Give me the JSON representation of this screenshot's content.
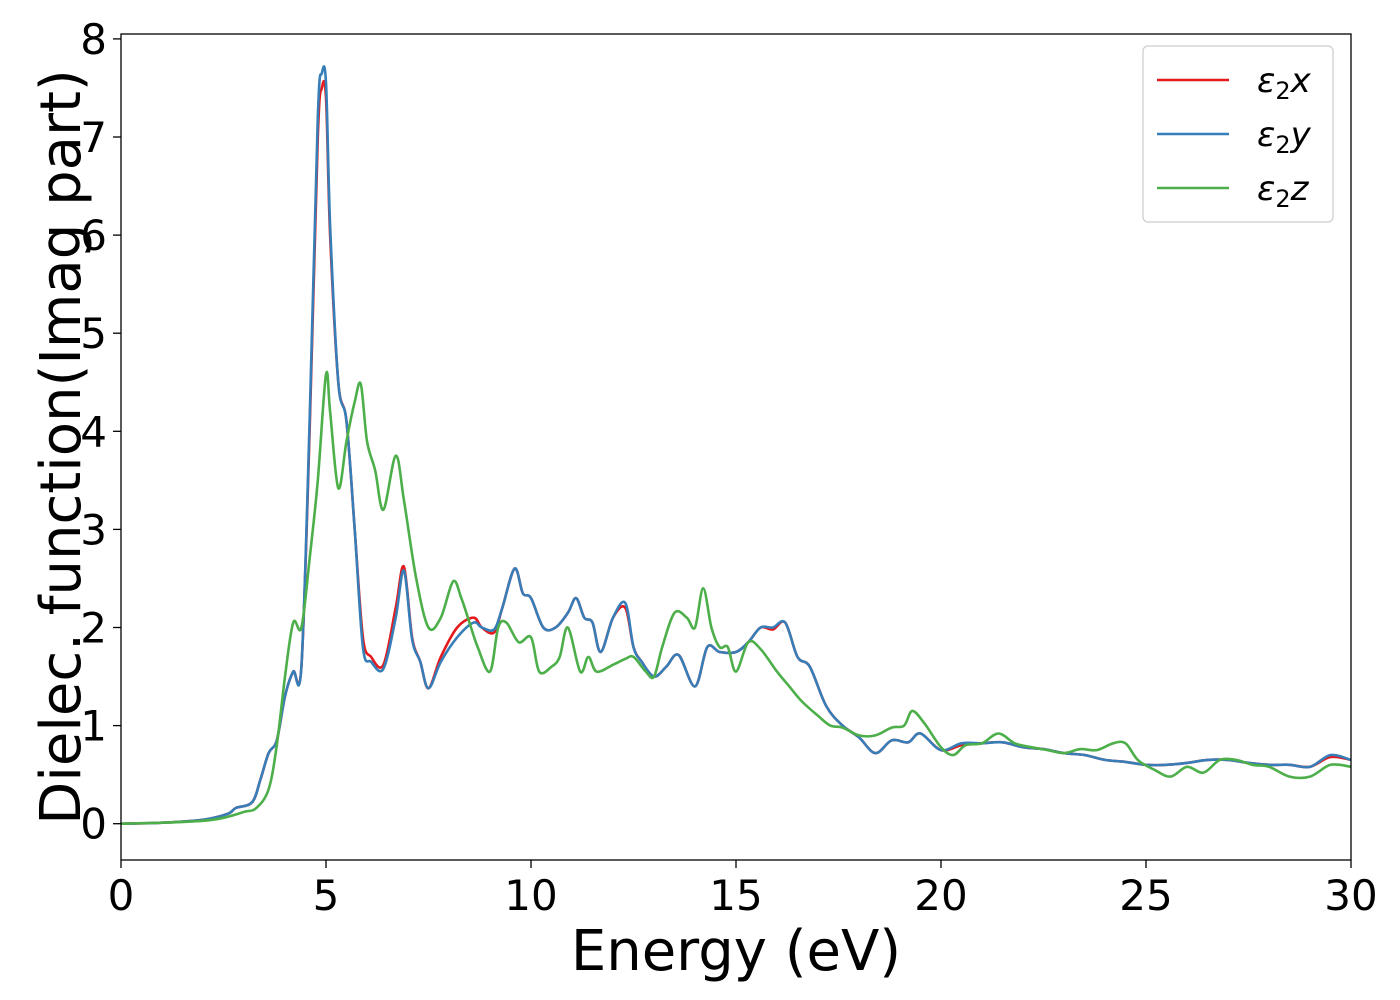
{
  "chart_data": {
    "type": "line",
    "title": "",
    "xlabel": "Energy (eV)",
    "ylabel": "Dielec. function(Imag part)",
    "xlim": [
      0,
      30
    ],
    "ylim": [
      -0.37,
      8.05
    ],
    "xticks": [
      0,
      5,
      10,
      15,
      20,
      25,
      30
    ],
    "yticks": [
      0,
      1,
      2,
      3,
      4,
      5,
      6,
      7,
      8
    ],
    "grid": false,
    "legend_position": "top-right",
    "series": [
      {
        "name": "ε₂x",
        "legend": {
          "base": "ε",
          "sub": "2",
          "axis": "x"
        },
        "color": "#e41a1c",
        "points": [
          [
            0,
            0.0
          ],
          [
            1,
            0.01
          ],
          [
            2,
            0.04
          ],
          [
            2.6,
            0.1
          ],
          [
            2.8,
            0.16
          ],
          [
            3.2,
            0.22
          ],
          [
            3.4,
            0.45
          ],
          [
            3.6,
            0.72
          ],
          [
            3.8,
            0.85
          ],
          [
            4.0,
            1.3
          ],
          [
            4.2,
            1.55
          ],
          [
            4.4,
            1.6
          ],
          [
            4.6,
            4.0
          ],
          [
            4.8,
            7.0
          ],
          [
            4.9,
            7.5
          ],
          [
            5.0,
            7.4
          ],
          [
            5.1,
            6.0
          ],
          [
            5.3,
            4.5
          ],
          [
            5.5,
            4.1
          ],
          [
            5.7,
            3.0
          ],
          [
            5.9,
            1.9
          ],
          [
            6.1,
            1.7
          ],
          [
            6.4,
            1.62
          ],
          [
            6.7,
            2.2
          ],
          [
            6.9,
            2.62
          ],
          [
            7.1,
            1.9
          ],
          [
            7.3,
            1.65
          ],
          [
            7.5,
            1.38
          ],
          [
            7.8,
            1.7
          ],
          [
            8.2,
            2.0
          ],
          [
            8.6,
            2.1
          ],
          [
            8.8,
            2.0
          ],
          [
            9.1,
            1.95
          ],
          [
            9.3,
            2.2
          ],
          [
            9.6,
            2.6
          ],
          [
            9.8,
            2.35
          ],
          [
            10.0,
            2.3
          ],
          [
            10.3,
            2.0
          ],
          [
            10.6,
            2.0
          ],
          [
            10.9,
            2.15
          ],
          [
            11.1,
            2.3
          ],
          [
            11.3,
            2.1
          ],
          [
            11.5,
            2.05
          ],
          [
            11.7,
            1.75
          ],
          [
            12.0,
            2.1
          ],
          [
            12.3,
            2.2
          ],
          [
            12.5,
            1.8
          ],
          [
            12.7,
            1.65
          ],
          [
            13.0,
            1.5
          ],
          [
            13.3,
            1.6
          ],
          [
            13.6,
            1.72
          ],
          [
            14.0,
            1.4
          ],
          [
            14.3,
            1.8
          ],
          [
            14.6,
            1.75
          ],
          [
            15.0,
            1.75
          ],
          [
            15.3,
            1.85
          ],
          [
            15.6,
            2.0
          ],
          [
            15.9,
            1.98
          ],
          [
            16.2,
            2.05
          ],
          [
            16.5,
            1.7
          ],
          [
            16.8,
            1.6
          ],
          [
            17.2,
            1.2
          ],
          [
            17.6,
            1.0
          ],
          [
            18.0,
            0.88
          ],
          [
            18.4,
            0.72
          ],
          [
            18.8,
            0.85
          ],
          [
            19.2,
            0.83
          ],
          [
            19.5,
            0.92
          ],
          [
            20.0,
            0.75
          ],
          [
            20.5,
            0.8
          ],
          [
            21.0,
            0.82
          ],
          [
            21.5,
            0.83
          ],
          [
            22.0,
            0.78
          ],
          [
            22.5,
            0.76
          ],
          [
            23.0,
            0.72
          ],
          [
            23.5,
            0.7
          ],
          [
            24.0,
            0.65
          ],
          [
            24.5,
            0.63
          ],
          [
            25.0,
            0.6
          ],
          [
            25.5,
            0.6
          ],
          [
            26.0,
            0.62
          ],
          [
            26.5,
            0.65
          ],
          [
            27.0,
            0.65
          ],
          [
            27.5,
            0.62
          ],
          [
            28.0,
            0.6
          ],
          [
            28.5,
            0.6
          ],
          [
            29.0,
            0.58
          ],
          [
            29.5,
            0.68
          ],
          [
            30.0,
            0.65
          ]
        ]
      },
      {
        "name": "ε₂y",
        "legend": {
          "base": "ε",
          "sub": "2",
          "axis": "y"
        },
        "color": "#377eb8",
        "points": [
          [
            0,
            0.0
          ],
          [
            1,
            0.01
          ],
          [
            2,
            0.04
          ],
          [
            2.6,
            0.1
          ],
          [
            2.8,
            0.16
          ],
          [
            3.2,
            0.22
          ],
          [
            3.4,
            0.45
          ],
          [
            3.6,
            0.72
          ],
          [
            3.8,
            0.85
          ],
          [
            4.0,
            1.3
          ],
          [
            4.2,
            1.55
          ],
          [
            4.4,
            1.6
          ],
          [
            4.6,
            4.1
          ],
          [
            4.8,
            7.2
          ],
          [
            4.9,
            7.65
          ],
          [
            5.0,
            7.55
          ],
          [
            5.1,
            6.1
          ],
          [
            5.3,
            4.5
          ],
          [
            5.5,
            4.1
          ],
          [
            5.7,
            3.0
          ],
          [
            5.9,
            1.8
          ],
          [
            6.1,
            1.65
          ],
          [
            6.4,
            1.58
          ],
          [
            6.7,
            2.1
          ],
          [
            6.9,
            2.58
          ],
          [
            7.1,
            1.88
          ],
          [
            7.3,
            1.65
          ],
          [
            7.5,
            1.38
          ],
          [
            7.8,
            1.65
          ],
          [
            8.2,
            1.9
          ],
          [
            8.6,
            2.05
          ],
          [
            8.8,
            2.0
          ],
          [
            9.1,
            1.98
          ],
          [
            9.3,
            2.2
          ],
          [
            9.6,
            2.6
          ],
          [
            9.8,
            2.35
          ],
          [
            10.0,
            2.3
          ],
          [
            10.3,
            2.0
          ],
          [
            10.6,
            2.0
          ],
          [
            10.9,
            2.15
          ],
          [
            11.1,
            2.3
          ],
          [
            11.3,
            2.1
          ],
          [
            11.5,
            2.05
          ],
          [
            11.7,
            1.75
          ],
          [
            12.0,
            2.1
          ],
          [
            12.3,
            2.25
          ],
          [
            12.5,
            1.8
          ],
          [
            12.7,
            1.65
          ],
          [
            13.0,
            1.5
          ],
          [
            13.3,
            1.6
          ],
          [
            13.6,
            1.72
          ],
          [
            14.0,
            1.4
          ],
          [
            14.3,
            1.8
          ],
          [
            14.6,
            1.75
          ],
          [
            15.0,
            1.75
          ],
          [
            15.3,
            1.85
          ],
          [
            15.6,
            2.0
          ],
          [
            15.9,
            2.0
          ],
          [
            16.2,
            2.05
          ],
          [
            16.5,
            1.7
          ],
          [
            16.8,
            1.6
          ],
          [
            17.2,
            1.2
          ],
          [
            17.6,
            1.0
          ],
          [
            18.0,
            0.88
          ],
          [
            18.4,
            0.72
          ],
          [
            18.8,
            0.85
          ],
          [
            19.2,
            0.83
          ],
          [
            19.5,
            0.92
          ],
          [
            20.0,
            0.75
          ],
          [
            20.5,
            0.82
          ],
          [
            21.0,
            0.82
          ],
          [
            21.5,
            0.83
          ],
          [
            22.0,
            0.78
          ],
          [
            22.5,
            0.76
          ],
          [
            23.0,
            0.72
          ],
          [
            23.5,
            0.7
          ],
          [
            24.0,
            0.65
          ],
          [
            24.5,
            0.63
          ],
          [
            25.0,
            0.6
          ],
          [
            25.5,
            0.6
          ],
          [
            26.0,
            0.62
          ],
          [
            26.5,
            0.65
          ],
          [
            27.0,
            0.65
          ],
          [
            27.5,
            0.62
          ],
          [
            28.0,
            0.6
          ],
          [
            28.5,
            0.6
          ],
          [
            29.0,
            0.58
          ],
          [
            29.5,
            0.7
          ],
          [
            30.0,
            0.65
          ]
        ]
      },
      {
        "name": "ε₂z",
        "legend": {
          "base": "ε",
          "sub": "2",
          "axis": "z"
        },
        "color": "#4daf4a",
        "points": [
          [
            0,
            0.0
          ],
          [
            1,
            0.01
          ],
          [
            2,
            0.03
          ],
          [
            2.5,
            0.06
          ],
          [
            3.0,
            0.12
          ],
          [
            3.3,
            0.16
          ],
          [
            3.6,
            0.35
          ],
          [
            3.8,
            0.8
          ],
          [
            4.0,
            1.5
          ],
          [
            4.2,
            2.05
          ],
          [
            4.4,
            2.0
          ],
          [
            4.6,
            2.7
          ],
          [
            4.8,
            3.5
          ],
          [
            5.0,
            4.58
          ],
          [
            5.1,
            4.2
          ],
          [
            5.3,
            3.42
          ],
          [
            5.5,
            3.9
          ],
          [
            5.7,
            4.3
          ],
          [
            5.85,
            4.48
          ],
          [
            6.0,
            3.9
          ],
          [
            6.2,
            3.6
          ],
          [
            6.4,
            3.2
          ],
          [
            6.7,
            3.75
          ],
          [
            6.9,
            3.3
          ],
          [
            7.2,
            2.5
          ],
          [
            7.5,
            2.0
          ],
          [
            7.8,
            2.1
          ],
          [
            8.1,
            2.47
          ],
          [
            8.3,
            2.3
          ],
          [
            8.5,
            2.05
          ],
          [
            8.7,
            1.8
          ],
          [
            9.0,
            1.55
          ],
          [
            9.2,
            2.0
          ],
          [
            9.4,
            2.05
          ],
          [
            9.7,
            1.85
          ],
          [
            10.0,
            1.9
          ],
          [
            10.2,
            1.55
          ],
          [
            10.5,
            1.6
          ],
          [
            10.7,
            1.7
          ],
          [
            10.9,
            2.0
          ],
          [
            11.2,
            1.55
          ],
          [
            11.4,
            1.7
          ],
          [
            11.6,
            1.55
          ],
          [
            12.0,
            1.62
          ],
          [
            12.3,
            1.68
          ],
          [
            12.5,
            1.7
          ],
          [
            12.8,
            1.55
          ],
          [
            13.0,
            1.5
          ],
          [
            13.2,
            1.8
          ],
          [
            13.5,
            2.15
          ],
          [
            13.8,
            2.1
          ],
          [
            14.0,
            2.0
          ],
          [
            14.2,
            2.4
          ],
          [
            14.4,
            2.0
          ],
          [
            14.6,
            1.8
          ],
          [
            14.8,
            1.8
          ],
          [
            15.0,
            1.55
          ],
          [
            15.3,
            1.85
          ],
          [
            15.6,
            1.78
          ],
          [
            16.0,
            1.55
          ],
          [
            16.3,
            1.4
          ],
          [
            16.6,
            1.25
          ],
          [
            17.0,
            1.1
          ],
          [
            17.3,
            1.0
          ],
          [
            17.6,
            0.98
          ],
          [
            18.0,
            0.9
          ],
          [
            18.4,
            0.9
          ],
          [
            18.8,
            0.98
          ],
          [
            19.1,
            1.0
          ],
          [
            19.3,
            1.15
          ],
          [
            19.6,
            1.02
          ],
          [
            20.0,
            0.78
          ],
          [
            20.3,
            0.7
          ],
          [
            20.6,
            0.8
          ],
          [
            21.0,
            0.82
          ],
          [
            21.4,
            0.92
          ],
          [
            21.8,
            0.82
          ],
          [
            22.2,
            0.78
          ],
          [
            22.6,
            0.75
          ],
          [
            23.0,
            0.72
          ],
          [
            23.4,
            0.76
          ],
          [
            23.8,
            0.75
          ],
          [
            24.2,
            0.82
          ],
          [
            24.5,
            0.82
          ],
          [
            24.8,
            0.65
          ],
          [
            25.2,
            0.55
          ],
          [
            25.6,
            0.48
          ],
          [
            26.0,
            0.58
          ],
          [
            26.4,
            0.52
          ],
          [
            26.8,
            0.65
          ],
          [
            27.2,
            0.65
          ],
          [
            27.6,
            0.6
          ],
          [
            28.0,
            0.58
          ],
          [
            28.5,
            0.48
          ],
          [
            29.0,
            0.48
          ],
          [
            29.5,
            0.6
          ],
          [
            30.0,
            0.58
          ]
        ]
      }
    ]
  }
}
